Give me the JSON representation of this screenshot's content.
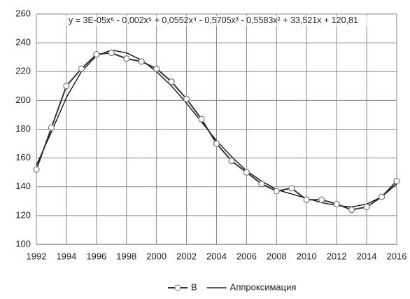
{
  "chart_data": {
    "type": "line",
    "annotation": "y = 3E-05x⁶ - 0,002x⁵ + 0,0552x⁴ - 0,5705x³ - 0,5583x² + 33,521x + 120,81",
    "x": [
      1992,
      1993,
      1994,
      1995,
      1996,
      1997,
      1998,
      1999,
      2000,
      2001,
      2002,
      2003,
      2004,
      2005,
      2006,
      2007,
      2008,
      2009,
      2010,
      2011,
      2012,
      2013,
      2014,
      2015,
      2016
    ],
    "series": [
      {
        "name": "B",
        "color": "#333333",
        "marker": true,
        "values": [
          152,
          181,
          210,
          222,
          232,
          233,
          229,
          227,
          222,
          213,
          201,
          187,
          170,
          158,
          150,
          142,
          137,
          139,
          131,
          131,
          128,
          124,
          126,
          133,
          144
        ]
      },
      {
        "name": "Аппроксимация",
        "color": "#000000",
        "marker": false,
        "values": [
          155,
          178,
          202,
          220,
          231,
          235,
          233,
          228,
          220,
          210,
          198,
          185,
          172,
          161,
          151,
          144,
          138,
          135,
          132,
          129,
          127,
          126,
          128,
          133,
          142
        ]
      }
    ],
    "xlim": [
      1992,
      2016
    ],
    "xticks": [
      1992,
      1994,
      1996,
      1998,
      2000,
      2002,
      2004,
      2006,
      2008,
      2010,
      2012,
      2014,
      2016
    ],
    "ylim": [
      100,
      260
    ],
    "yticks": [
      100,
      120,
      140,
      160,
      180,
      200,
      220,
      240,
      260
    ],
    "grid": true,
    "legend": "bottom"
  }
}
